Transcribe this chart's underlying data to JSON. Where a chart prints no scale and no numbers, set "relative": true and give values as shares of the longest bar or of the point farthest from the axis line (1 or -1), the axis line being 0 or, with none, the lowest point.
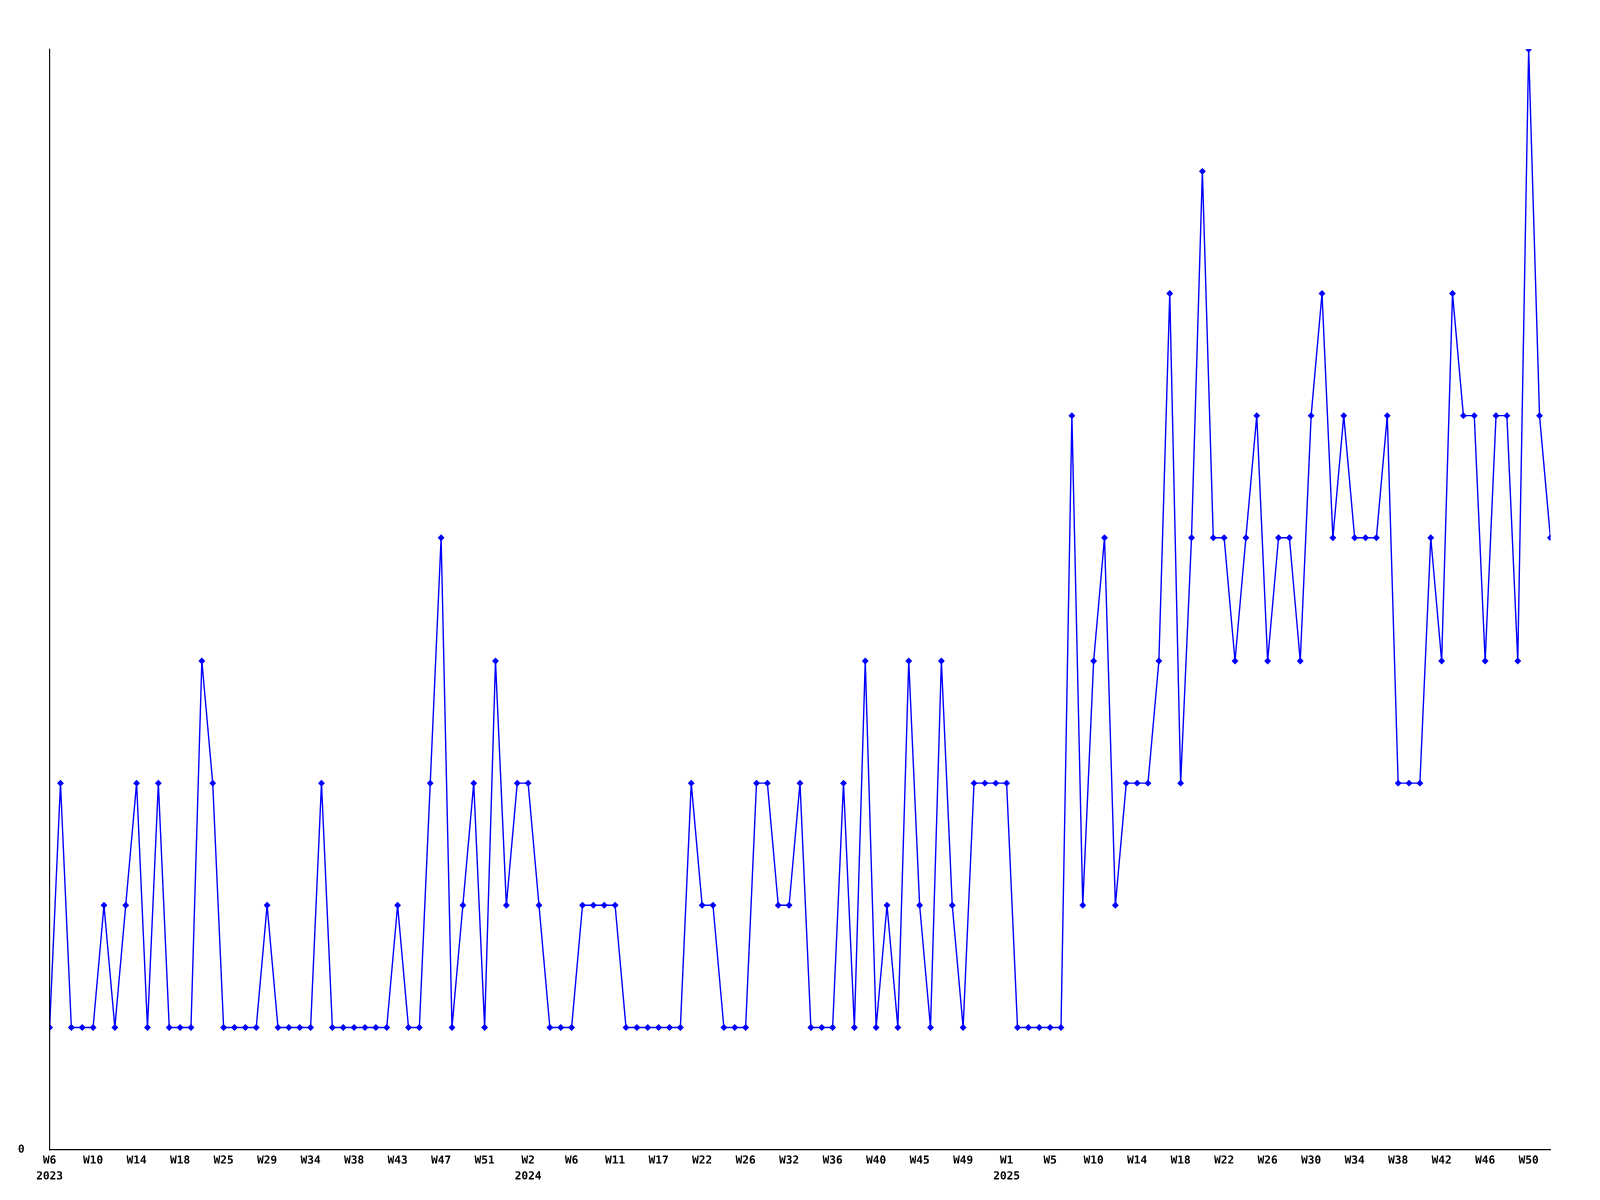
{
  "chart_data": {
    "type": "line",
    "relative": true,
    "color": "#0000ff",
    "marker": "diamond",
    "line_style": "solid",
    "grid": false,
    "legend": false,
    "annotations": [
      "0"
    ],
    "categories": [
      "W6\n2023",
      null,
      null,
      null,
      "W10",
      null,
      null,
      null,
      "W14",
      null,
      null,
      null,
      "W18",
      null,
      null,
      null,
      "W25",
      null,
      null,
      null,
      "W29",
      null,
      null,
      null,
      "W34",
      null,
      null,
      null,
      "W38",
      null,
      null,
      null,
      "W43",
      null,
      null,
      null,
      "W47",
      null,
      null,
      null,
      "W51",
      null,
      null,
      null,
      "W2\n2024",
      null,
      null,
      null,
      "W6",
      null,
      null,
      null,
      "W11",
      null,
      null,
      null,
      "W17",
      null,
      null,
      null,
      "W22",
      null,
      null,
      null,
      "W26",
      null,
      null,
      null,
      "W32",
      null,
      null,
      null,
      "W36",
      null,
      null,
      null,
      "W40",
      null,
      null,
      null,
      "W45",
      null,
      null,
      null,
      "W49",
      null,
      null,
      null,
      "W1\n2025",
      null,
      null,
      null,
      "W5",
      null,
      null,
      null,
      "W10",
      null,
      null,
      null,
      "W14",
      null,
      null,
      null,
      "W18",
      null,
      null,
      null,
      "W22",
      null,
      null,
      null,
      "W26",
      null,
      null,
      null,
      "W30",
      null,
      null,
      null,
      "W34",
      null,
      null,
      null,
      "W38",
      null,
      null,
      null,
      "W42",
      null,
      null,
      null,
      "W46",
      null,
      null,
      null,
      "W50",
      null,
      null
    ],
    "values": [
      0.111,
      0.333,
      0.111,
      0.111,
      0.111,
      0.222,
      0.111,
      0.222,
      0.333,
      0.111,
      0.333,
      0.111,
      0.111,
      0.111,
      0.444,
      0.333,
      0.111,
      0.111,
      0.111,
      0.111,
      0.222,
      0.111,
      0.111,
      0.111,
      0.111,
      0.333,
      0.111,
      0.111,
      0.111,
      0.111,
      0.111,
      0.111,
      0.222,
      0.111,
      0.111,
      0.333,
      0.556,
      0.111,
      0.222,
      0.333,
      0.111,
      0.444,
      0.222,
      0.333,
      0.333,
      0.222,
      0.111,
      0.111,
      0.111,
      0.222,
      0.222,
      0.222,
      0.222,
      0.111,
      0.111,
      0.111,
      0.111,
      0.111,
      0.111,
      0.333,
      0.222,
      0.222,
      0.111,
      0.111,
      0.111,
      0.333,
      0.333,
      0.222,
      0.222,
      0.333,
      0.111,
      0.111,
      0.111,
      0.333,
      0.111,
      0.444,
      0.111,
      0.222,
      0.111,
      0.444,
      0.222,
      0.111,
      0.444,
      0.222,
      0.111,
      0.333,
      0.333,
      0.333,
      0.333,
      0.111,
      0.111,
      0.111,
      0.111,
      0.111,
      0.667,
      0.222,
      0.444,
      0.556,
      0.222,
      0.333,
      0.333,
      0.333,
      0.444,
      0.778,
      0.333,
      0.556,
      0.889,
      0.556,
      0.556,
      0.444,
      0.556,
      0.667,
      0.444,
      0.556,
      0.556,
      0.444,
      0.667,
      0.778,
      0.556,
      0.667,
      0.556,
      0.556,
      0.556,
      0.667,
      0.333,
      0.333,
      0.333,
      0.556,
      0.444,
      0.778,
      0.667,
      0.667,
      0.444,
      0.667,
      0.667,
      0.444,
      1,
      0.667,
      0.556
    ]
  }
}
